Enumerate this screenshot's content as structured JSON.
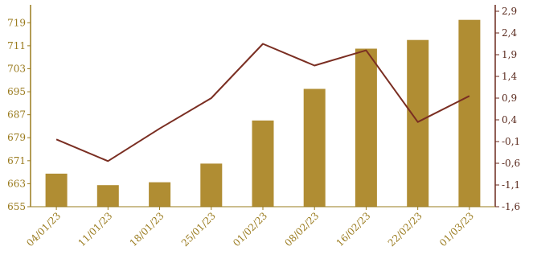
{
  "chart_data": {
    "type": "bar",
    "categories": [
      "04/01/23",
      "11/01/23",
      "18/01/23",
      "25/01/23",
      "01/02/23",
      "08/02/23",
      "16/02/23",
      "22/02/23",
      "01/03/23"
    ],
    "series": [
      {
        "type": "bar",
        "axis": "left",
        "color": "#b08d33",
        "values": [
          666.5,
          662.5,
          663.5,
          670,
          685,
          696,
          710,
          713,
          720
        ]
      },
      {
        "type": "line",
        "axis": "right",
        "color": "#7a2e22",
        "values": [
          -0.05,
          -0.55,
          0.2,
          0.9,
          2.15,
          1.65,
          2.0,
          0.35,
          0.95
        ]
      }
    ],
    "y_left": {
      "ylim": [
        655,
        723
      ],
      "ticks": [
        "655",
        "663",
        "671",
        "679",
        "687",
        "695",
        "703",
        "711",
        "719"
      ],
      "color": "#9a7b1e"
    },
    "y_right": {
      "ylim": [
        -1.6,
        2.9
      ],
      "ticks": [
        "-1,6",
        "-1,1",
        "-0,6",
        "-0,1",
        "0,4",
        "0,9",
        "1,4",
        "1,9",
        "2,4",
        "2,9"
      ],
      "color": "#6b2a1e"
    },
    "grid": false,
    "title": "",
    "xlabel": "",
    "ylabel": ""
  }
}
